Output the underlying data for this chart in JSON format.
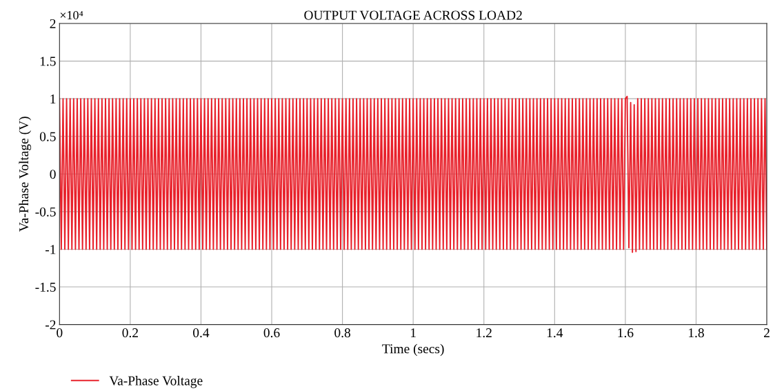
{
  "chart_data": {
    "type": "line",
    "title": "OUTPUT VOLTAGE ACROSS LOAD2",
    "xlabel": "Time (secs)",
    "ylabel": "Va-Phase Voltage (V)",
    "annotations": [
      "×10⁴"
    ],
    "xlim": [
      0,
      2
    ],
    "xticks": [
      0,
      0.2,
      0.4,
      0.6,
      0.8,
      1,
      1.2,
      1.4,
      1.6,
      1.8,
      2
    ],
    "ylim": [
      -2,
      2
    ],
    "yticks": [
      -2,
      -1.5,
      -1,
      -0.5,
      0,
      0.5,
      1,
      1.5,
      2
    ],
    "grid": true,
    "legend": "bottom left",
    "line_style": "solid",
    "series": [
      {
        "name": "Va-Phase Voltage",
        "color": "#e8212b",
        "x": [
          0,
          0.005,
          0.01,
          0.015,
          0.02,
          0.025,
          0.03,
          0.035,
          0.04,
          0.045,
          0.05,
          0.055,
          0.06,
          0.065,
          0.07,
          0.075,
          0.08,
          0.085,
          0.09,
          0.095,
          0.1,
          0.105,
          0.11,
          0.115,
          0.12,
          0.125,
          0.13,
          0.135,
          0.14,
          0.145,
          0.15,
          0.155,
          0.16,
          0.165,
          0.17,
          0.175,
          0.18,
          0.185,
          0.19,
          0.195,
          0.2,
          0.205,
          0.21,
          0.215,
          0.22,
          0.225,
          0.23,
          0.235,
          0.24,
          0.245,
          0.25,
          0.255,
          0.26,
          0.265,
          0.27,
          0.275,
          0.28,
          0.285,
          0.29,
          0.295,
          0.3,
          0.305,
          0.31,
          0.315,
          0.32,
          0.325,
          0.33,
          0.335,
          0.34,
          0.345,
          0.35,
          0.355,
          0.36,
          0.365,
          0.37,
          0.375,
          0.38,
          0.385,
          0.39,
          0.395,
          0.4,
          0.405,
          0.41,
          0.415,
          0.42,
          0.425,
          0.43,
          0.435,
          0.44,
          0.445,
          0.45,
          0.455,
          0.46,
          0.465,
          0.47,
          0.475,
          0.48,
          0.485,
          0.49,
          0.495,
          0.5,
          0.505,
          0.51,
          0.515,
          0.52,
          0.525,
          0.53,
          0.535,
          0.54,
          0.545,
          0.55,
          0.555,
          0.56,
          0.565,
          0.57,
          0.575,
          0.58,
          0.585,
          0.59,
          0.595,
          0.6,
          0.605,
          0.61,
          0.615,
          0.62,
          0.625,
          0.63,
          0.635,
          0.64,
          0.645,
          0.65,
          0.655,
          0.66,
          0.665,
          0.67,
          0.675,
          0.68,
          0.685,
          0.69,
          0.695,
          0.7,
          0.705,
          0.71,
          0.715,
          0.72,
          0.725,
          0.73,
          0.735,
          0.74,
          0.745,
          0.75,
          0.755,
          0.76,
          0.765,
          0.77,
          0.775,
          0.78,
          0.785,
          0.79,
          0.795,
          0.8,
          0.805,
          0.81,
          0.815,
          0.82,
          0.825,
          0.83,
          0.835,
          0.84,
          0.845,
          0.85,
          0.855,
          0.86,
          0.865,
          0.87,
          0.875,
          0.88,
          0.885,
          0.89,
          0.895,
          0.9,
          0.905,
          0.91,
          0.915,
          0.92,
          0.925,
          0.93,
          0.935,
          0.94,
          0.945,
          0.95,
          0.955,
          0.96,
          0.965,
          0.97,
          0.975,
          0.98,
          0.985,
          0.99,
          0.995,
          1,
          1.005,
          1.01,
          1.015,
          1.02,
          1.025,
          1.03,
          1.035,
          1.04,
          1.045,
          1.05,
          1.055,
          1.06,
          1.065,
          1.07,
          1.075,
          1.08,
          1.085,
          1.09,
          1.095,
          1.1,
          1.105,
          1.11,
          1.115,
          1.12,
          1.125,
          1.13,
          1.135,
          1.14,
          1.145,
          1.15,
          1.155,
          1.16,
          1.165,
          1.17,
          1.175,
          1.18,
          1.185,
          1.19,
          1.195,
          1.2,
          1.205,
          1.21,
          1.215,
          1.22,
          1.225,
          1.23,
          1.235,
          1.24,
          1.245,
          1.25,
          1.255,
          1.26,
          1.265,
          1.27,
          1.275,
          1.28,
          1.285,
          1.29,
          1.295,
          1.3,
          1.305,
          1.31,
          1.315,
          1.32,
          1.325,
          1.33,
          1.335,
          1.34,
          1.345,
          1.35,
          1.355,
          1.36,
          1.365,
          1.37,
          1.375,
          1.38,
          1.385,
          1.39,
          1.395,
          1.4,
          1.405,
          1.41,
          1.415,
          1.42,
          1.425,
          1.43,
          1.435,
          1.44,
          1.445,
          1.45,
          1.455,
          1.46,
          1.465,
          1.47,
          1.475,
          1.48,
          1.485,
          1.49,
          1.495,
          1.5,
          1.505,
          1.51,
          1.515,
          1.52,
          1.525,
          1.53,
          1.535,
          1.54,
          1.545,
          1.55,
          1.555,
          1.56,
          1.565,
          1.57,
          1.575,
          1.58,
          1.585,
          1.59,
          1.595,
          1.6,
          1.605,
          1.61,
          1.615,
          1.62,
          1.625,
          1.63,
          1.635,
          1.64,
          1.645,
          1.65,
          1.655,
          1.66,
          1.665,
          1.67,
          1.675,
          1.68,
          1.685,
          1.69,
          1.695,
          1.7,
          1.705,
          1.71,
          1.715,
          1.72,
          1.725,
          1.73,
          1.735,
          1.74,
          1.745,
          1.75,
          1.755,
          1.76,
          1.765,
          1.77,
          1.775,
          1.78,
          1.785,
          1.79,
          1.795,
          1.8,
          1.805,
          1.81,
          1.815,
          1.82,
          1.825,
          1.83,
          1.835,
          1.84,
          1.845,
          1.85,
          1.855,
          1.86,
          1.865,
          1.87,
          1.875,
          1.88,
          1.885,
          1.89,
          1.895,
          1.9,
          1.905,
          1.91,
          1.915,
          1.92,
          1.925,
          1.93,
          1.935,
          1.94,
          1.945,
          1.95,
          1.955,
          1.96,
          1.965,
          1.97,
          1.975,
          1.98,
          1.985,
          1.99,
          1.995,
          2
        ],
        "values": [
          1,
          -1,
          1,
          -1,
          1,
          -1,
          1,
          -1,
          1,
          -1,
          1,
          -1,
          1,
          -1,
          1,
          -1,
          1,
          -1,
          1,
          -1,
          1,
          -1,
          1,
          -1,
          1,
          -1,
          1,
          -1,
          1,
          -1,
          1,
          -1,
          1,
          -1,
          1,
          -1,
          1,
          -1,
          1,
          -1,
          1,
          -1,
          1,
          -1,
          1,
          -1,
          1,
          -1,
          1,
          -1,
          1,
          -1,
          1,
          -1,
          1,
          -1,
          1,
          -1,
          1,
          -1,
          1,
          -1,
          1,
          -1,
          1,
          -1,
          1,
          -1,
          1,
          -1,
          1,
          -1,
          1,
          -1,
          1,
          -1,
          1,
          -1,
          1,
          -1,
          1,
          -1,
          1,
          -1,
          1,
          -1,
          1,
          -1,
          1,
          -1,
          1,
          -1,
          1,
          -1,
          1,
          -1,
          1,
          -1,
          1,
          -1,
          1,
          -1,
          1,
          -1,
          1,
          -1,
          1,
          -1,
          1,
          -1,
          1,
          -1,
          1,
          -1,
          1,
          -1,
          1,
          -1,
          1,
          -1,
          1,
          -1,
          1,
          -1,
          1,
          -1,
          1,
          -1,
          1,
          -1,
          1,
          -1,
          1,
          -1,
          1,
          -1,
          1,
          -1,
          1,
          -1,
          1,
          -1,
          1,
          -1,
          1,
          -1,
          1,
          -1,
          1,
          -1,
          1,
          -1,
          1,
          -1,
          1,
          -1,
          1,
          -1,
          1,
          -1,
          1,
          -1,
          1,
          -1,
          1,
          -1,
          1,
          -1,
          1,
          -1,
          1,
          -1,
          1,
          -1,
          1,
          -1,
          1,
          -1,
          1,
          -1,
          1,
          -1,
          1,
          -1,
          1,
          -1,
          1,
          -1,
          1,
          -1,
          1,
          -1,
          1,
          -1,
          1,
          -1,
          1,
          -1,
          1,
          -1,
          1,
          -1,
          1,
          -1,
          1,
          -1,
          1,
          -1,
          1,
          -1,
          1,
          -1,
          1,
          -1,
          1,
          -1,
          1,
          -1,
          1,
          -1,
          1,
          -1,
          1,
          -1,
          1,
          -1,
          1,
          -1,
          1,
          -1,
          1,
          -1,
          1,
          -1,
          1,
          -1,
          1,
          -1,
          1,
          -1,
          1,
          -1,
          1,
          -1,
          1,
          -1,
          1,
          -1,
          1,
          -1,
          1,
          -1,
          1,
          -1,
          1,
          -1,
          1,
          -1,
          1,
          -1,
          1,
          -1,
          1,
          -1,
          1,
          -1,
          1,
          -1,
          1,
          -1,
          1,
          -1,
          1,
          -1,
          1,
          -1,
          1,
          -1,
          1,
          -1,
          1,
          -1,
          1,
          -1,
          1,
          -1,
          1,
          -1,
          1,
          -1,
          1,
          -1,
          1,
          -1,
          1,
          -1,
          1,
          -1,
          1,
          -1,
          1,
          -1,
          1,
          -1,
          1,
          -1,
          1,
          -1,
          1,
          -1,
          1,
          -1,
          1,
          -1,
          1,
          -1,
          1,
          -1,
          1,
          -1,
          1,
          1.03,
          -0.98,
          0.95,
          -1.04,
          0.92,
          -1.03,
          1,
          -1,
          1,
          -1,
          1,
          -1,
          1,
          -1,
          1,
          -1,
          1,
          -1,
          1,
          -1,
          1,
          -1,
          1,
          -1,
          1,
          -1,
          1,
          -1,
          1,
          -1,
          1,
          -1,
          1,
          -1,
          1,
          -1,
          1,
          -1,
          1,
          -1,
          1,
          -1,
          1,
          -1,
          1,
          -1,
          1,
          -1,
          1,
          -1,
          1,
          -1,
          1,
          -1,
          1,
          -1,
          1,
          -1,
          1,
          -1,
          1,
          -1,
          1,
          -1,
          1,
          -1,
          1,
          -1,
          1,
          -1,
          1,
          -1,
          1,
          -1,
          1,
          -1,
          1,
          -1,
          1,
          -1
        ]
      }
    ]
  }
}
